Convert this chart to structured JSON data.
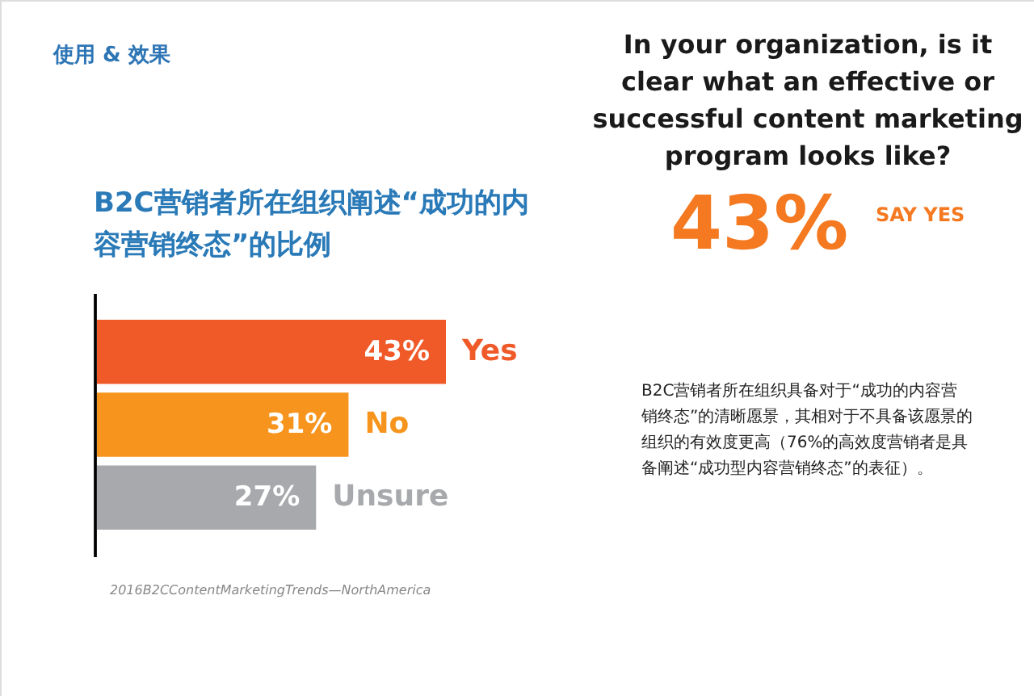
{
  "chart_data": {
    "type": "bar",
    "orientation": "horizontal",
    "subtitle": "使用 & 效果",
    "title": "B2C营销者所在组织阐述“成功的内容营销终态”的比例",
    "categories": [
      "Yes",
      "No",
      "Unsure"
    ],
    "values": [
      43,
      31,
      27
    ],
    "colors": [
      "#f05a28",
      "#f7941d",
      "#a7a9ac"
    ],
    "value_labels": [
      "43%",
      "31%",
      "27%"
    ],
    "annotations": [
      "In your organization, is it clear what an effective or successful content marketing program looks like?",
      "43%",
      "SAY YES",
      "B2C营销者所在组织具备对于“成功的内容营销终态”的清晰愿景，其相对于不具备该愿景的组织的有效度更高（76%的高效度营销者是具备阐述“成功型内容营销终态”的表征）。",
      "2016B2CContentMarketingTrends—NorthAmerica"
    ]
  }
}
